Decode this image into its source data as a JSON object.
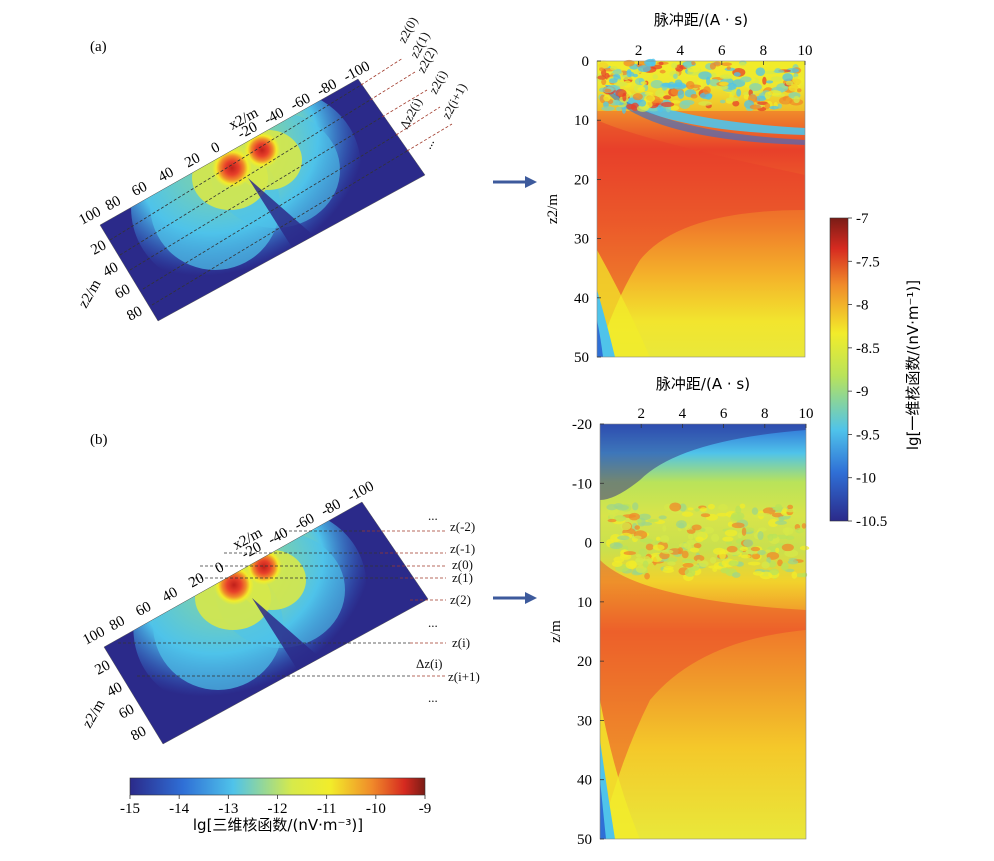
{
  "panel_labels": {
    "a": "(a)",
    "b": "(b)"
  },
  "colors": {
    "dark_blue": "#2b2a8a",
    "blue": "#2f6fd6",
    "cyan": "#4fc3ea",
    "yellow": "#f2ec2a",
    "orange": "#f08a2a",
    "red": "#d62a20",
    "dark_red": "#7a1c16",
    "arrow": "#3d5a9c"
  },
  "chart_data": [
    {
      "type": "heatmap",
      "id": "a-3d",
      "title": "",
      "xlabel": "x2/m",
      "ylabel": "z2/m",
      "x_ticks": [
        "100",
        "80",
        "60",
        "40",
        "20",
        "0",
        "-20",
        "-40",
        "-60",
        "-80",
        "-100"
      ],
      "y_ticks": [
        "20",
        "40",
        "60",
        "80"
      ],
      "layer_labels": [
        "z2(0)",
        "z2(1)",
        "z2(2)",
        "z2(i)",
        "Δz2(i)",
        "z2(i+1)",
        "..."
      ],
      "colorbar": "3d"
    },
    {
      "type": "heatmap",
      "id": "a-1d",
      "title": "",
      "xlabel": "脉冲距/(A · s)",
      "ylabel": "z2/m",
      "x_ticks": [
        2,
        4,
        6,
        8,
        10
      ],
      "y_ticks": [
        0,
        10,
        20,
        30,
        40,
        50
      ],
      "xlim": [
        0,
        10
      ],
      "ylim": [
        50,
        0
      ],
      "colorbar": "1d"
    },
    {
      "type": "heatmap",
      "id": "b-3d",
      "title": "",
      "xlabel": "x2/m",
      "ylabel": "z2/m",
      "x_ticks": [
        "100",
        "80",
        "60",
        "40",
        "20",
        "0",
        "-20",
        "-40",
        "-60",
        "-80",
        "-100"
      ],
      "y_ticks": [
        "20",
        "40",
        "60",
        "80"
      ],
      "layer_labels": [
        "z(-2)",
        "z(-1)",
        "z(0)",
        "z(1)",
        "z(2)",
        "z(i)",
        "Δz(i)",
        "z(i+1)",
        "...",
        "...",
        "..."
      ],
      "colorbar": "3d"
    },
    {
      "type": "heatmap",
      "id": "b-1d",
      "title": "",
      "xlabel": "脉冲距/(A · s)",
      "ylabel": "z/m",
      "x_ticks": [
        2,
        4,
        6,
        8,
        10
      ],
      "y_ticks": [
        -20,
        -10,
        0,
        10,
        20,
        30,
        40,
        50
      ],
      "xlim": [
        0,
        10
      ],
      "ylim": [
        50,
        -20
      ],
      "colorbar": "1d"
    }
  ],
  "colorbar_1d": {
    "label": "lg[一维核函数/(nV·m⁻¹)]",
    "ticks": [
      "-7",
      "-7.5",
      "-8",
      "-8.5",
      "-9",
      "-9.5",
      "-10",
      "-10.5"
    ],
    "range": [
      -10.5,
      -7
    ]
  },
  "colorbar_3d": {
    "label": "lg[三维核函数/(nV·m⁻³)]",
    "ticks": [
      "-15",
      "-14",
      "-13",
      "-12",
      "-11",
      "-10",
      "-9"
    ],
    "range": [
      -15,
      -9
    ]
  }
}
